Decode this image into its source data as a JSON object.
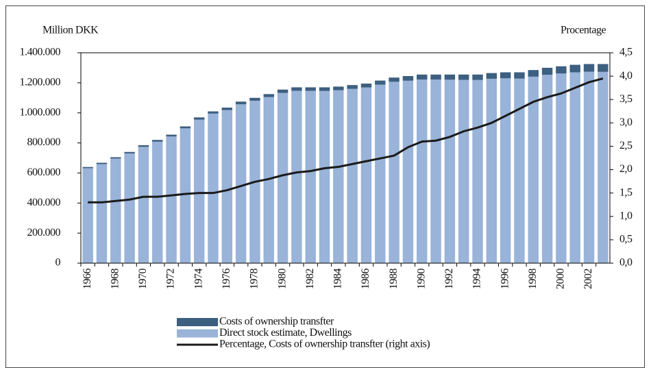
{
  "chart_data": {
    "type": "bar",
    "stacked": true,
    "y_label": "Million DKK",
    "y2_label": "Procentage",
    "categories": [
      "1966",
      null,
      "1968",
      null,
      "1970",
      null,
      "1972",
      null,
      "1974",
      null,
      "1976",
      null,
      "1978",
      null,
      "1980",
      null,
      "1982",
      null,
      "1984",
      null,
      "1986",
      null,
      "1988",
      null,
      "1990",
      null,
      "1992",
      null,
      "1994",
      null,
      "1996",
      null,
      "1998",
      null,
      "2000",
      null,
      "2002",
      null
    ],
    "series": [
      {
        "name": "Costs of ownership transfter",
        "color": "#3d5f80",
        "values": [
          8000,
          9000,
          9000,
          10000,
          11000,
          12000,
          12000,
          13000,
          15000,
          15000,
          16000,
          18000,
          19000,
          20000,
          22000,
          23000,
          23000,
          24000,
          24000,
          25000,
          26000,
          27000,
          28000,
          31000,
          33000,
          33000,
          34000,
          35000,
          36000,
          38000,
          40000,
          42000,
          44000,
          46000,
          48000,
          50000,
          51000,
          52000
        ]
      },
      {
        "name": "Direct stock estimate, Dwellings",
        "color": "#99b3d9",
        "values": [
          632000,
          659000,
          696000,
          730000,
          774000,
          808000,
          843000,
          897000,
          955000,
          995000,
          1019000,
          1057000,
          1081000,
          1105000,
          1133000,
          1147000,
          1147000,
          1146000,
          1151000,
          1160000,
          1169000,
          1188000,
          1207000,
          1214000,
          1222000,
          1222000,
          1221000,
          1220000,
          1219000,
          1227000,
          1230000,
          1228000,
          1241000,
          1254000,
          1262000,
          1270000,
          1274000,
          1273000
        ]
      },
      {
        "name": "Percentage, Costs of ownership transfter (right axis)",
        "type": "line",
        "axis": "y2",
        "color": "#1a1a1a",
        "values": [
          1.3,
          1.3,
          1.33,
          1.36,
          1.42,
          1.42,
          1.45,
          1.48,
          1.5,
          1.5,
          1.56,
          1.65,
          1.74,
          1.8,
          1.88,
          1.94,
          1.97,
          2.03,
          2.06,
          2.12,
          2.18,
          2.24,
          2.3,
          2.48,
          2.6,
          2.62,
          2.7,
          2.82,
          2.9,
          3.0,
          3.15,
          3.3,
          3.45,
          3.55,
          3.63,
          3.75,
          3.87,
          3.95
        ]
      }
    ],
    "ylim": [
      0,
      1400000
    ],
    "yticks": [
      0,
      {
        "value": 200000,
        "label": "200.000"
      },
      {
        "value": 400000,
        "label": "400.000"
      },
      {
        "value": 600000,
        "label": "600.000"
      },
      {
        "value": 800000,
        "label": "800.000"
      },
      {
        "value": 1000000,
        "label": "1.000.000"
      },
      {
        "value": 1200000,
        "label": "1.200.000"
      },
      {
        "value": 1400000,
        "label": "1.400.000"
      }
    ],
    "y2lim": [
      0,
      4.5
    ],
    "y2ticks": [
      {
        "value": 0,
        "label": "0,0"
      },
      {
        "value": 0.5,
        "label": "0,5"
      },
      {
        "value": 1,
        "label": "1,0"
      },
      {
        "value": 1.5,
        "label": "1,5"
      },
      {
        "value": 2,
        "label": "2,0"
      },
      {
        "value": 2.5,
        "label": "2,5"
      },
      {
        "value": 3,
        "label": "3,0"
      },
      {
        "value": 3.5,
        "label": "3,5"
      },
      {
        "value": 4,
        "label": "4,0"
      },
      {
        "value": 4.5,
        "label": "4,5"
      }
    ]
  }
}
